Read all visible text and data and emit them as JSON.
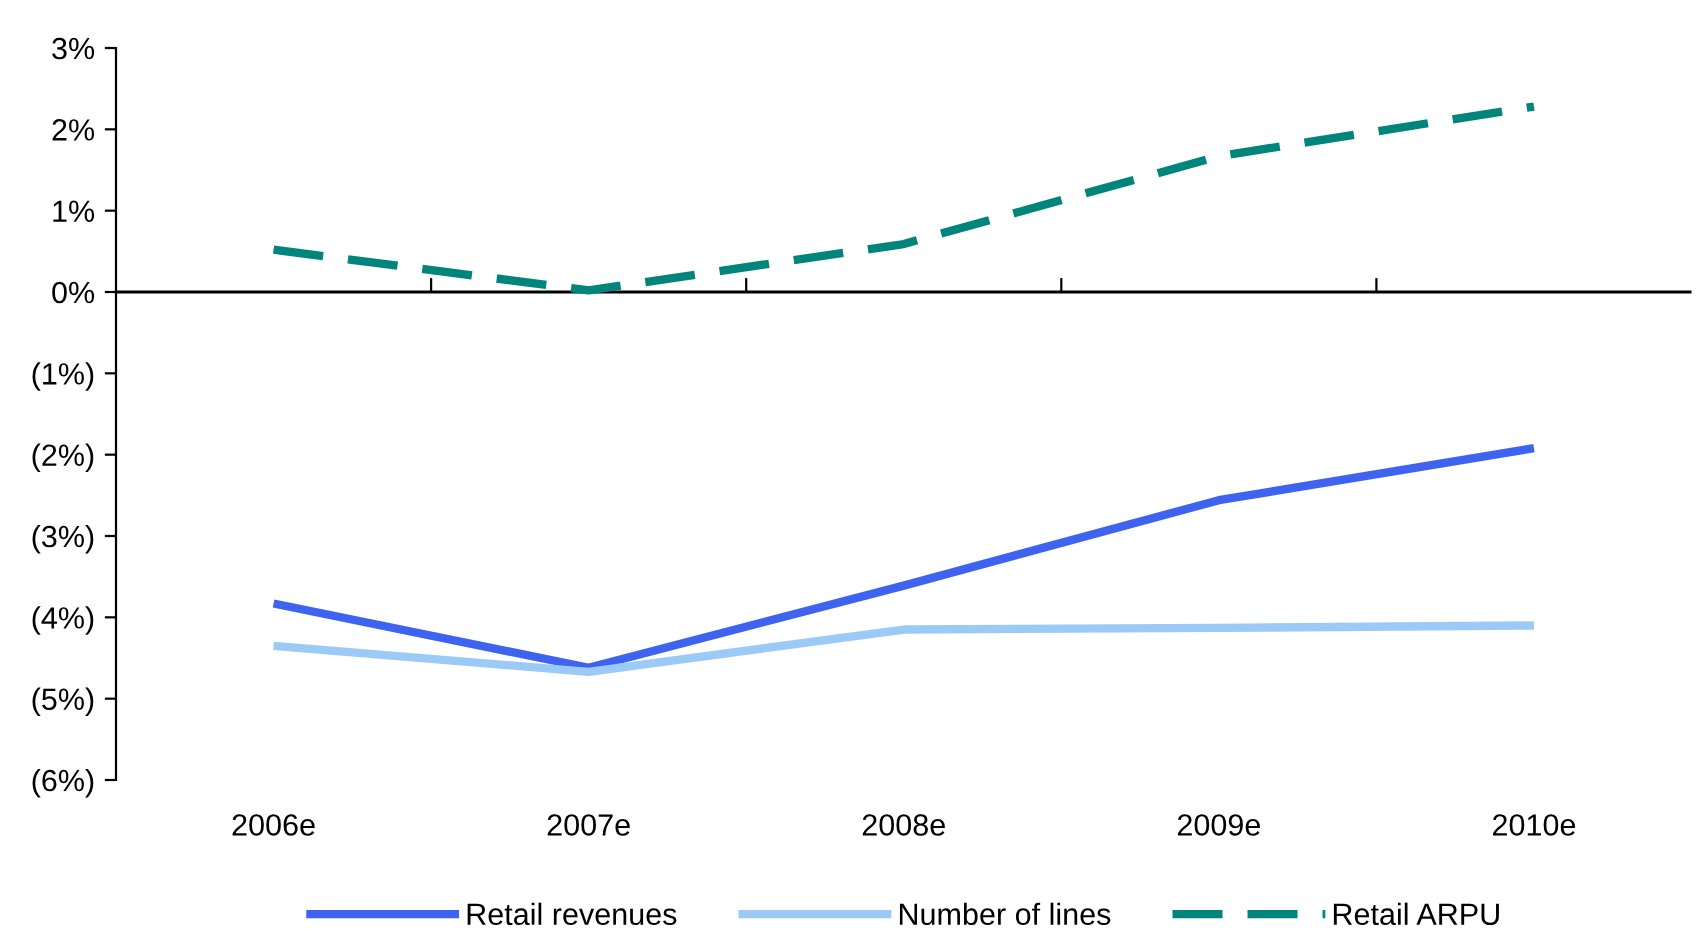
{
  "chart_data": {
    "type": "line",
    "categories": [
      "2006e",
      "2007e",
      "2008e",
      "2009e",
      "2010e"
    ],
    "series": [
      {
        "name": "Retail revenues",
        "color": "#3d63f0",
        "line_style": "solid",
        "values": [
          -3.83,
          -4.62,
          -3.61,
          -2.56,
          -1.92
        ]
      },
      {
        "name": "Number of lines",
        "color": "#9ccaf7",
        "line_style": "solid",
        "values": [
          -4.35,
          -4.67,
          -4.15,
          -4.13,
          -4.1
        ]
      },
      {
        "name": "Retail ARPU",
        "color": "#00857c",
        "line_style": "dashed",
        "values": [
          0.52,
          0.02,
          0.59,
          1.67,
          2.28
        ]
      }
    ],
    "ylim": [
      -6,
      3
    ],
    "yticks": [
      {
        "value": 3,
        "label": "3%"
      },
      {
        "value": 2,
        "label": "2%"
      },
      {
        "value": 1,
        "label": "1%"
      },
      {
        "value": 0,
        "label": "0%"
      },
      {
        "value": -1,
        "label": "(1%)"
      },
      {
        "value": -2,
        "label": "(2%)"
      },
      {
        "value": -3,
        "label": "(3%)"
      },
      {
        "value": -4,
        "label": "(4%)"
      },
      {
        "value": -5,
        "label": "(5%)"
      },
      {
        "value": -6,
        "label": "(6%)"
      }
    ],
    "ref_lines": [
      {
        "axis": "y",
        "value": 0,
        "color": "#000000"
      }
    ],
    "grid": false,
    "legend": "bottom",
    "marker": "none"
  }
}
